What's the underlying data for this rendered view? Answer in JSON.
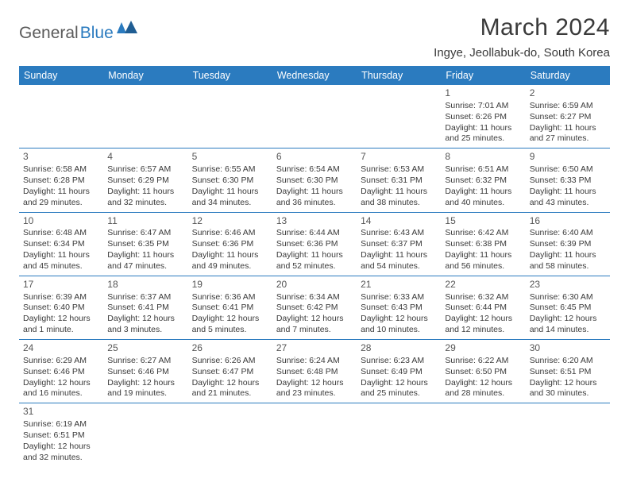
{
  "logo": {
    "part1": "General",
    "part2": "Blue"
  },
  "title": "March 2024",
  "location": "Ingye, Jeollabuk-do, South Korea",
  "colors": {
    "header_bg": "#2b7bbf",
    "header_text": "#ffffff",
    "border": "#2b7bbf",
    "body_text": "#3a3a3a",
    "logo_gray": "#5a5a5a",
    "logo_blue": "#2b7bbf",
    "background": "#ffffff"
  },
  "day_headers": [
    "Sunday",
    "Monday",
    "Tuesday",
    "Wednesday",
    "Thursday",
    "Friday",
    "Saturday"
  ],
  "weeks": [
    [
      null,
      null,
      null,
      null,
      null,
      {
        "n": "1",
        "sr": "Sunrise: 7:01 AM",
        "ss": "Sunset: 6:26 PM",
        "dl": "Daylight: 11 hours and 25 minutes."
      },
      {
        "n": "2",
        "sr": "Sunrise: 6:59 AM",
        "ss": "Sunset: 6:27 PM",
        "dl": "Daylight: 11 hours and 27 minutes."
      }
    ],
    [
      {
        "n": "3",
        "sr": "Sunrise: 6:58 AM",
        "ss": "Sunset: 6:28 PM",
        "dl": "Daylight: 11 hours and 29 minutes."
      },
      {
        "n": "4",
        "sr": "Sunrise: 6:57 AM",
        "ss": "Sunset: 6:29 PM",
        "dl": "Daylight: 11 hours and 32 minutes."
      },
      {
        "n": "5",
        "sr": "Sunrise: 6:55 AM",
        "ss": "Sunset: 6:30 PM",
        "dl": "Daylight: 11 hours and 34 minutes."
      },
      {
        "n": "6",
        "sr": "Sunrise: 6:54 AM",
        "ss": "Sunset: 6:30 PM",
        "dl": "Daylight: 11 hours and 36 minutes."
      },
      {
        "n": "7",
        "sr": "Sunrise: 6:53 AM",
        "ss": "Sunset: 6:31 PM",
        "dl": "Daylight: 11 hours and 38 minutes."
      },
      {
        "n": "8",
        "sr": "Sunrise: 6:51 AM",
        "ss": "Sunset: 6:32 PM",
        "dl": "Daylight: 11 hours and 40 minutes."
      },
      {
        "n": "9",
        "sr": "Sunrise: 6:50 AM",
        "ss": "Sunset: 6:33 PM",
        "dl": "Daylight: 11 hours and 43 minutes."
      }
    ],
    [
      {
        "n": "10",
        "sr": "Sunrise: 6:48 AM",
        "ss": "Sunset: 6:34 PM",
        "dl": "Daylight: 11 hours and 45 minutes."
      },
      {
        "n": "11",
        "sr": "Sunrise: 6:47 AM",
        "ss": "Sunset: 6:35 PM",
        "dl": "Daylight: 11 hours and 47 minutes."
      },
      {
        "n": "12",
        "sr": "Sunrise: 6:46 AM",
        "ss": "Sunset: 6:36 PM",
        "dl": "Daylight: 11 hours and 49 minutes."
      },
      {
        "n": "13",
        "sr": "Sunrise: 6:44 AM",
        "ss": "Sunset: 6:36 PM",
        "dl": "Daylight: 11 hours and 52 minutes."
      },
      {
        "n": "14",
        "sr": "Sunrise: 6:43 AM",
        "ss": "Sunset: 6:37 PM",
        "dl": "Daylight: 11 hours and 54 minutes."
      },
      {
        "n": "15",
        "sr": "Sunrise: 6:42 AM",
        "ss": "Sunset: 6:38 PM",
        "dl": "Daylight: 11 hours and 56 minutes."
      },
      {
        "n": "16",
        "sr": "Sunrise: 6:40 AM",
        "ss": "Sunset: 6:39 PM",
        "dl": "Daylight: 11 hours and 58 minutes."
      }
    ],
    [
      {
        "n": "17",
        "sr": "Sunrise: 6:39 AM",
        "ss": "Sunset: 6:40 PM",
        "dl": "Daylight: 12 hours and 1 minute."
      },
      {
        "n": "18",
        "sr": "Sunrise: 6:37 AM",
        "ss": "Sunset: 6:41 PM",
        "dl": "Daylight: 12 hours and 3 minutes."
      },
      {
        "n": "19",
        "sr": "Sunrise: 6:36 AM",
        "ss": "Sunset: 6:41 PM",
        "dl": "Daylight: 12 hours and 5 minutes."
      },
      {
        "n": "20",
        "sr": "Sunrise: 6:34 AM",
        "ss": "Sunset: 6:42 PM",
        "dl": "Daylight: 12 hours and 7 minutes."
      },
      {
        "n": "21",
        "sr": "Sunrise: 6:33 AM",
        "ss": "Sunset: 6:43 PM",
        "dl": "Daylight: 12 hours and 10 minutes."
      },
      {
        "n": "22",
        "sr": "Sunrise: 6:32 AM",
        "ss": "Sunset: 6:44 PM",
        "dl": "Daylight: 12 hours and 12 minutes."
      },
      {
        "n": "23",
        "sr": "Sunrise: 6:30 AM",
        "ss": "Sunset: 6:45 PM",
        "dl": "Daylight: 12 hours and 14 minutes."
      }
    ],
    [
      {
        "n": "24",
        "sr": "Sunrise: 6:29 AM",
        "ss": "Sunset: 6:46 PM",
        "dl": "Daylight: 12 hours and 16 minutes."
      },
      {
        "n": "25",
        "sr": "Sunrise: 6:27 AM",
        "ss": "Sunset: 6:46 PM",
        "dl": "Daylight: 12 hours and 19 minutes."
      },
      {
        "n": "26",
        "sr": "Sunrise: 6:26 AM",
        "ss": "Sunset: 6:47 PM",
        "dl": "Daylight: 12 hours and 21 minutes."
      },
      {
        "n": "27",
        "sr": "Sunrise: 6:24 AM",
        "ss": "Sunset: 6:48 PM",
        "dl": "Daylight: 12 hours and 23 minutes."
      },
      {
        "n": "28",
        "sr": "Sunrise: 6:23 AM",
        "ss": "Sunset: 6:49 PM",
        "dl": "Daylight: 12 hours and 25 minutes."
      },
      {
        "n": "29",
        "sr": "Sunrise: 6:22 AM",
        "ss": "Sunset: 6:50 PM",
        "dl": "Daylight: 12 hours and 28 minutes."
      },
      {
        "n": "30",
        "sr": "Sunrise: 6:20 AM",
        "ss": "Sunset: 6:51 PM",
        "dl": "Daylight: 12 hours and 30 minutes."
      }
    ],
    [
      {
        "n": "31",
        "sr": "Sunrise: 6:19 AM",
        "ss": "Sunset: 6:51 PM",
        "dl": "Daylight: 12 hours and 32 minutes."
      },
      null,
      null,
      null,
      null,
      null,
      null
    ]
  ]
}
